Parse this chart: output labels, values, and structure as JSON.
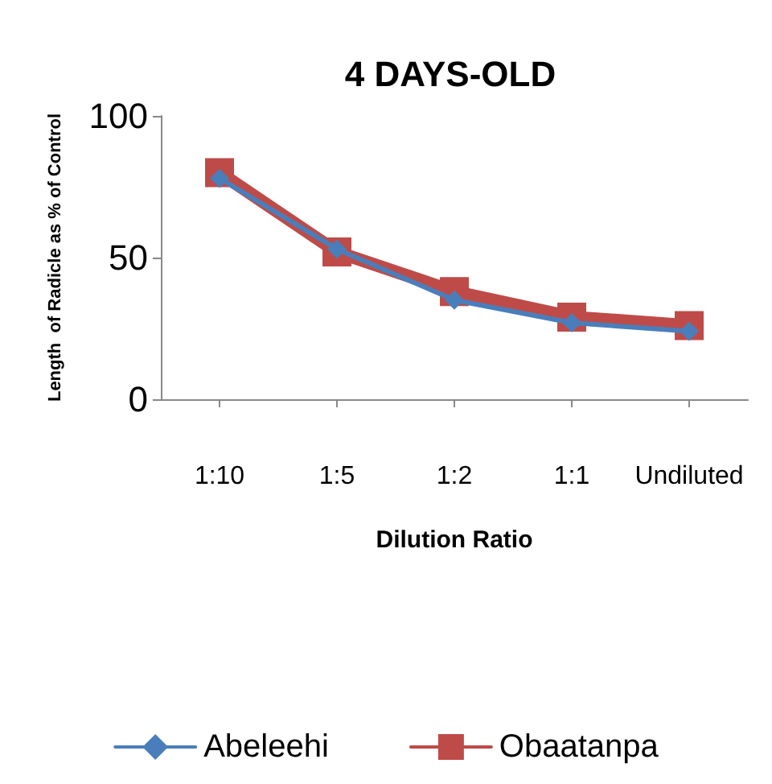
{
  "chart_data": {
    "type": "line",
    "title": "4 DAYS-OLD",
    "xlabel": "Dilution Ratio",
    "ylabel": "Length  of Radicle as % of Control",
    "categories": [
      "1:10",
      "1:5",
      "1:2",
      "1:1",
      "Undiluted"
    ],
    "series": [
      {
        "name": "Abeleehi",
        "color": "#4a7ebb",
        "marker": "diamond",
        "values": [
          78,
          53,
          35,
          27,
          24
        ]
      },
      {
        "name": "Obaatanpa",
        "color": "#be4b48",
        "marker": "square",
        "values": [
          80,
          52,
          38,
          29,
          26
        ]
      }
    ],
    "ylim": [
      0,
      100
    ],
    "yticks": [
      0,
      50,
      100
    ],
    "grid": false,
    "legend": "bottom",
    "line_style": "solid"
  }
}
